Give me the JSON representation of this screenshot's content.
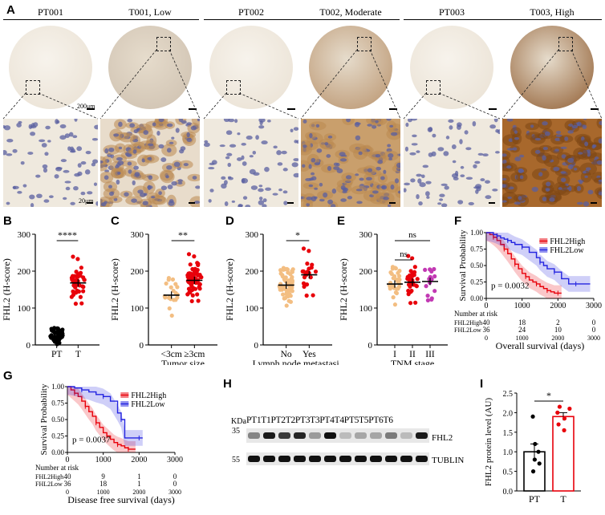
{
  "panel_labels": {
    "A": "A",
    "B": "B",
    "C": "C",
    "D": "D",
    "E": "E",
    "F": "F",
    "G": "G",
    "H": "H",
    "I": "I"
  },
  "panelA": {
    "headers": [
      "PT001",
      "T001, Low",
      "PT002",
      "T002, Moderate",
      "PT003",
      "T003, High"
    ],
    "scale_top": "200μm",
    "scale_bottom": "20μm",
    "stain_colors": {
      "tissue_bg": "#efe9de",
      "nuclei": "#5a5fa0",
      "dab_low": "#d8b88a",
      "dab_high": "#9a5a1e"
    }
  },
  "chart_data": [
    {
      "id": "B",
      "type": "scatter",
      "ylabel": "FHL2 (H-score)",
      "categories": [
        "PT",
        "T"
      ],
      "ylim": [
        0,
        300
      ],
      "yticks": [
        0,
        100,
        200,
        300
      ],
      "series": [
        {
          "category": "PT",
          "color": "#000000",
          "mean": 25,
          "n": 40
        },
        {
          "category": "T",
          "color": "#e8000a",
          "mean": 168,
          "n": 40
        }
      ],
      "significance": "****"
    },
    {
      "id": "C",
      "type": "scatter",
      "ylabel": "FHL2 (H-score)",
      "xlabel": "Tumor size",
      "categories": [
        "<3cm",
        "≥3cm"
      ],
      "ylim": [
        0,
        300
      ],
      "yticks": [
        0,
        100,
        200,
        300
      ],
      "series": [
        {
          "category": "<3cm",
          "color": "#f3be82",
          "mean": 135,
          "n": 20
        },
        {
          "category": "≥3cm",
          "color": "#e8000a",
          "mean": 175,
          "n": 60
        }
      ],
      "significance": "**"
    },
    {
      "id": "D",
      "type": "scatter",
      "ylabel": "FHL2 (H-score)",
      "xlabel": "Lymph node metastasis",
      "categories": [
        "No",
        "Yes"
      ],
      "ylim": [
        0,
        300
      ],
      "yticks": [
        0,
        100,
        200,
        300
      ],
      "series": [
        {
          "category": "No",
          "color": "#f3be82",
          "mean": 162,
          "n": 60
        },
        {
          "category": "Yes",
          "color": "#e8000a",
          "mean": 190,
          "n": 20
        }
      ],
      "significance": "*"
    },
    {
      "id": "E",
      "type": "scatter",
      "ylabel": "FHL2 (H-score)",
      "xlabel": "TNM stage",
      "categories": [
        "I",
        "II",
        "III"
      ],
      "ylim": [
        0,
        300
      ],
      "yticks": [
        0,
        100,
        200,
        300
      ],
      "series": [
        {
          "category": "I",
          "color": "#f3be82",
          "mean": 165,
          "n": 30
        },
        {
          "category": "II",
          "color": "#e8000a",
          "mean": 170,
          "n": 30
        },
        {
          "category": "III",
          "color": "#c239b3",
          "mean": 172,
          "n": 15
        }
      ],
      "significance": [
        "ns",
        "ns"
      ]
    },
    {
      "id": "F",
      "type": "line",
      "ylabel": "Survival Probability",
      "xlabel": "Overall survival (days)",
      "xlim": [
        0,
        3000
      ],
      "ylim": [
        0,
        1
      ],
      "xticks": [
        0,
        1000,
        2000,
        3000
      ],
      "yticks": [
        0.0,
        0.25,
        0.5,
        0.75,
        1.0
      ],
      "pvalue": "p = 0.0032",
      "series": [
        {
          "name": "FHL2High",
          "color": "#e8000a",
          "x": [
            0,
            100,
            200,
            300,
            400,
            500,
            600,
            700,
            800,
            900,
            1000,
            1100,
            1200,
            1300,
            1400,
            1500,
            1600,
            1700,
            1800,
            1900,
            2000,
            2100
          ],
          "y": [
            1,
            0.97,
            0.93,
            0.88,
            0.82,
            0.75,
            0.68,
            0.6,
            0.52,
            0.45,
            0.38,
            0.33,
            0.28,
            0.25,
            0.22,
            0.18,
            0.15,
            0.12,
            0.1,
            0.08,
            0.08,
            0.08
          ]
        },
        {
          "name": "FHL2Low",
          "color": "#2323e0",
          "x": [
            0,
            200,
            300,
            400,
            500,
            600,
            700,
            800,
            1000,
            1200,
            1400,
            1500,
            1600,
            1700,
            1900,
            2100,
            2300,
            2500,
            2900
          ],
          "y": [
            1,
            0.97,
            0.95,
            0.92,
            0.9,
            0.88,
            0.85,
            0.82,
            0.78,
            0.7,
            0.62,
            0.55,
            0.5,
            0.45,
            0.4,
            0.3,
            0.22,
            0.22,
            0.22
          ]
        }
      ],
      "risk_title": "Number at risk",
      "risk_rows": [
        {
          "label": "FHL2High",
          "values": [
            "40",
            "18",
            "2",
            "0"
          ]
        },
        {
          "label": "FHL2Low",
          "values": [
            "36",
            "24",
            "10",
            "0"
          ]
        }
      ],
      "risk_x": [
        "0",
        "1000",
        "2000",
        "3000"
      ]
    },
    {
      "id": "G",
      "type": "line",
      "ylabel": "Survival Probability",
      "xlabel": "Disease free survival (days)",
      "xlim": [
        0,
        3000
      ],
      "ylim": [
        0,
        1
      ],
      "xticks": [
        0,
        1000,
        2000,
        3000
      ],
      "yticks": [
        0.0,
        0.25,
        0.5,
        0.75,
        1.0
      ],
      "pvalue": "p = 0.0037",
      "series": [
        {
          "name": "FHL2High",
          "color": "#e8000a",
          "x": [
            0,
            100,
            200,
            300,
            400,
            500,
            600,
            700,
            800,
            900,
            1000,
            1100,
            1200,
            1300,
            1400,
            1500,
            1600,
            1700,
            1800,
            1900
          ],
          "y": [
            1,
            0.95,
            0.9,
            0.85,
            0.78,
            0.7,
            0.62,
            0.55,
            0.45,
            0.38,
            0.3,
            0.25,
            0.2,
            0.15,
            0.12,
            0.1,
            0.07,
            0.05,
            0.05,
            0.05
          ]
        },
        {
          "name": "FHL2Low",
          "color": "#2323e0",
          "x": [
            0,
            200,
            400,
            600,
            800,
            1000,
            1200,
            1400,
            1500,
            1600,
            1800,
            2000,
            2100
          ],
          "y": [
            1,
            0.98,
            0.95,
            0.92,
            0.88,
            0.85,
            0.78,
            0.6,
            0.5,
            0.22,
            0.22,
            0.22,
            0.22
          ]
        }
      ],
      "risk_title": "Number at risk",
      "risk_rows": [
        {
          "label": "FHL2High",
          "values": [
            "40",
            "9",
            "1",
            "0"
          ]
        },
        {
          "label": "FHL2Low",
          "values": [
            "36",
            "18",
            "1",
            "0"
          ]
        }
      ],
      "risk_x": [
        "0",
        "1000",
        "2000",
        "3000"
      ]
    },
    {
      "id": "I",
      "type": "bar",
      "ylabel": "FHL2 protein level (AU)",
      "categories": [
        "PT",
        "T"
      ],
      "ylim": [
        0,
        2.5
      ],
      "yticks": [
        0.0,
        0.5,
        1.0,
        1.5,
        2.0,
        2.5
      ],
      "values": [
        1.0,
        1.9
      ],
      "errors": [
        0.2,
        0.1
      ],
      "colors": [
        "#000000",
        "#e8000a"
      ],
      "points": [
        [
          0.5,
          0.7,
          0.8,
          1.0,
          1.2,
          1.9
        ],
        [
          1.55,
          1.7,
          1.85,
          2.0,
          2.1,
          2.15
        ]
      ],
      "significance": "*"
    }
  ],
  "panelH": {
    "kda_label": "KDa",
    "lane_header": "PT1T1PT2T2PT3T3PT4T4PT5T5PT6T6",
    "marker_35": "35",
    "marker_55": "55",
    "protein_1": "FHL2",
    "protein_2": "TUBLIN",
    "fhl2_intensity": [
      0.45,
      0.95,
      0.8,
      0.9,
      0.35,
      1.0,
      0.2,
      0.3,
      0.3,
      0.5,
      0.2,
      0.95
    ]
  }
}
